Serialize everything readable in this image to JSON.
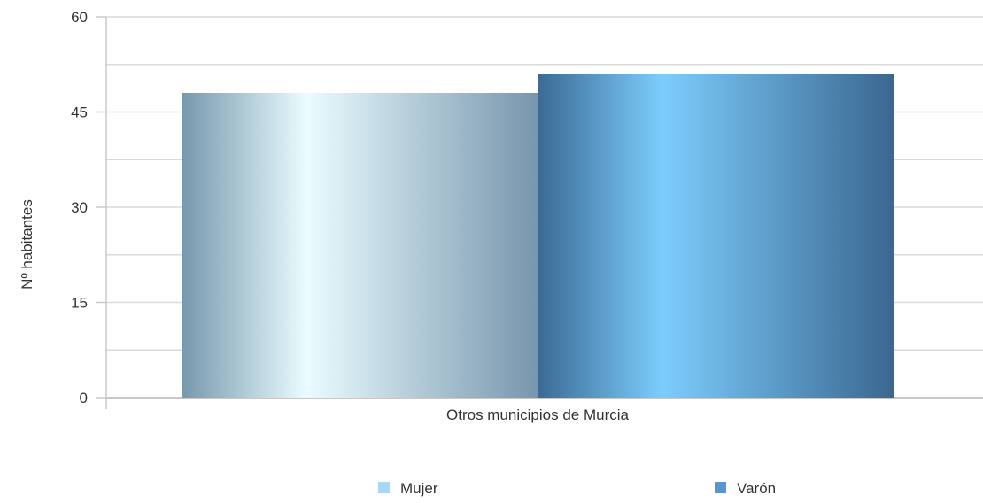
{
  "chart_data": {
    "type": "bar",
    "title": "",
    "xlabel": "",
    "ylabel": "Nº habitantes",
    "categories": [
      "Otros municipios de Murcia"
    ],
    "series": [
      {
        "name": "Mujer",
        "values": [
          48
        ],
        "color": "#9fd3f0",
        "legend_color": "#a8d8f5"
      },
      {
        "name": "Varón",
        "values": [
          51
        ],
        "color": "#4f8fcf",
        "legend_color": "#5a93d2"
      }
    ],
    "ylim": [
      0,
      60
    ],
    "yticks": [
      0,
      15,
      30,
      45,
      60
    ],
    "grid": true,
    "legend_position": "bottom"
  }
}
